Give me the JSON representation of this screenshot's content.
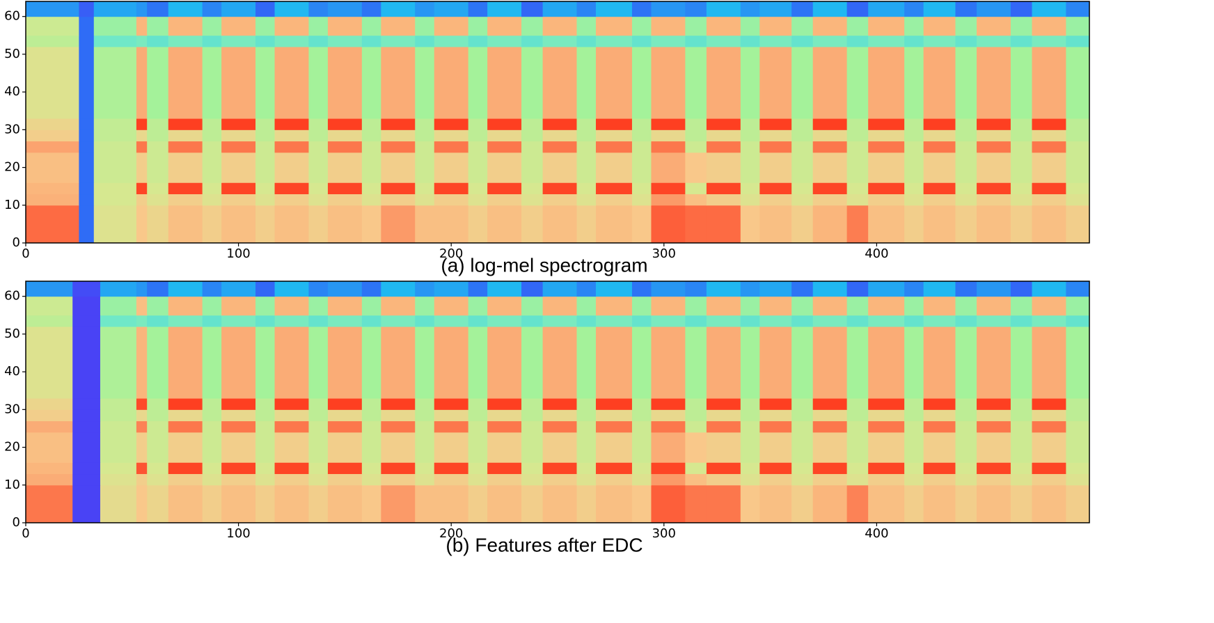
{
  "chart_data": [
    {
      "type": "heatmap",
      "caption": "(a) log-mel spectrogram",
      "xlim": [
        0,
        500
      ],
      "ylim": [
        0,
        64
      ],
      "zlim": [
        0,
        1
      ],
      "xticks": [
        0,
        100,
        200,
        300,
        400
      ],
      "yticks": [
        0,
        10,
        20,
        30,
        40,
        50,
        60
      ],
      "xbins": [
        0,
        25,
        32,
        52,
        57,
        67,
        83,
        92,
        108,
        117,
        133,
        142,
        158,
        167,
        183,
        192,
        208,
        217,
        233,
        243,
        259,
        268,
        285,
        294,
        310,
        320,
        336,
        345,
        360,
        370,
        386,
        396,
        413,
        422,
        437,
        447,
        463,
        473,
        489,
        500
      ],
      "ybins": [
        0,
        10,
        13,
        16,
        24,
        27,
        30,
        33,
        52,
        55,
        60,
        64
      ],
      "z": [
        [
          0.88,
          0.15,
          0.62,
          0.7,
          0.66,
          0.72,
          0.68,
          0.72,
          0.68,
          0.72,
          0.68,
          0.72,
          0.7,
          0.8,
          0.72,
          0.72,
          0.68,
          0.72,
          0.68,
          0.72,
          0.68,
          0.72,
          0.7,
          0.9,
          0.88,
          0.88,
          0.7,
          0.72,
          0.68,
          0.74,
          0.85,
          0.72,
          0.68,
          0.72,
          0.68,
          0.72,
          0.68,
          0.72,
          0.68
        ],
        [
          0.75,
          0.15,
          0.6,
          0.68,
          0.62,
          0.68,
          0.62,
          0.68,
          0.62,
          0.68,
          0.62,
          0.68,
          0.62,
          0.68,
          0.62,
          0.68,
          0.62,
          0.68,
          0.62,
          0.68,
          0.62,
          0.68,
          0.62,
          0.8,
          0.72,
          0.68,
          0.62,
          0.68,
          0.62,
          0.68,
          0.62,
          0.68,
          0.62,
          0.68,
          0.62,
          0.68,
          0.62,
          0.68,
          0.62
        ],
        [
          0.74,
          0.15,
          0.6,
          0.95,
          0.6,
          0.95,
          0.6,
          0.95,
          0.6,
          0.95,
          0.6,
          0.95,
          0.6,
          0.95,
          0.6,
          0.95,
          0.6,
          0.95,
          0.6,
          0.95,
          0.6,
          0.95,
          0.6,
          0.95,
          0.6,
          0.95,
          0.6,
          0.95,
          0.6,
          0.95,
          0.6,
          0.95,
          0.6,
          0.95,
          0.6,
          0.95,
          0.6,
          0.95,
          0.6
        ],
        [
          0.72,
          0.15,
          0.58,
          0.68,
          0.58,
          0.68,
          0.58,
          0.68,
          0.58,
          0.68,
          0.58,
          0.68,
          0.58,
          0.68,
          0.58,
          0.68,
          0.58,
          0.68,
          0.58,
          0.68,
          0.58,
          0.68,
          0.58,
          0.76,
          0.7,
          0.68,
          0.58,
          0.68,
          0.58,
          0.68,
          0.58,
          0.68,
          0.58,
          0.68,
          0.58,
          0.68,
          0.58,
          0.68,
          0.58
        ],
        [
          0.78,
          0.15,
          0.58,
          0.86,
          0.58,
          0.86,
          0.58,
          0.86,
          0.58,
          0.86,
          0.58,
          0.86,
          0.58,
          0.86,
          0.58,
          0.86,
          0.58,
          0.86,
          0.58,
          0.86,
          0.58,
          0.86,
          0.58,
          0.86,
          0.58,
          0.86,
          0.58,
          0.86,
          0.58,
          0.86,
          0.58,
          0.86,
          0.58,
          0.86,
          0.58,
          0.86,
          0.58,
          0.86,
          0.58
        ],
        [
          0.68,
          0.15,
          0.56,
          0.65,
          0.55,
          0.65,
          0.55,
          0.65,
          0.55,
          0.65,
          0.55,
          0.65,
          0.55,
          0.65,
          0.55,
          0.65,
          0.55,
          0.65,
          0.55,
          0.65,
          0.55,
          0.65,
          0.55,
          0.65,
          0.55,
          0.65,
          0.55,
          0.65,
          0.55,
          0.65,
          0.55,
          0.65,
          0.55,
          0.65,
          0.55,
          0.65,
          0.55,
          0.65,
          0.55
        ],
        [
          0.66,
          0.15,
          0.56,
          0.96,
          0.55,
          0.96,
          0.55,
          0.96,
          0.55,
          0.96,
          0.55,
          0.96,
          0.55,
          0.96,
          0.55,
          0.96,
          0.55,
          0.96,
          0.55,
          0.96,
          0.55,
          0.96,
          0.55,
          0.96,
          0.55,
          0.96,
          0.55,
          0.96,
          0.55,
          0.96,
          0.55,
          0.96,
          0.55,
          0.96,
          0.55,
          0.96,
          0.55,
          0.96,
          0.55
        ],
        [
          0.62,
          0.15,
          0.52,
          0.76,
          0.5,
          0.76,
          0.5,
          0.76,
          0.5,
          0.76,
          0.5,
          0.76,
          0.5,
          0.76,
          0.5,
          0.76,
          0.5,
          0.76,
          0.5,
          0.76,
          0.5,
          0.76,
          0.5,
          0.76,
          0.5,
          0.76,
          0.5,
          0.76,
          0.5,
          0.76,
          0.5,
          0.76,
          0.5,
          0.76,
          0.5,
          0.76,
          0.5,
          0.76,
          0.5
        ],
        [
          0.55,
          0.15,
          0.4,
          0.42,
          0.38,
          0.42,
          0.38,
          0.42,
          0.38,
          0.42,
          0.38,
          0.42,
          0.38,
          0.42,
          0.38,
          0.42,
          0.38,
          0.42,
          0.38,
          0.42,
          0.38,
          0.42,
          0.38,
          0.42,
          0.38,
          0.42,
          0.38,
          0.42,
          0.38,
          0.42,
          0.38,
          0.42,
          0.38,
          0.42,
          0.38,
          0.42,
          0.38,
          0.42,
          0.38
        ],
        [
          0.58,
          0.15,
          0.48,
          0.74,
          0.48,
          0.74,
          0.48,
          0.74,
          0.48,
          0.74,
          0.48,
          0.74,
          0.48,
          0.74,
          0.48,
          0.74,
          0.48,
          0.74,
          0.48,
          0.74,
          0.48,
          0.74,
          0.48,
          0.74,
          0.48,
          0.74,
          0.48,
          0.74,
          0.48,
          0.74,
          0.48,
          0.74,
          0.48,
          0.74,
          0.48,
          0.74,
          0.48,
          0.74,
          0.48
        ],
        [
          0.2,
          0.12,
          0.22,
          0.2,
          0.16,
          0.24,
          0.18,
          0.22,
          0.14,
          0.24,
          0.18,
          0.2,
          0.16,
          0.24,
          0.2,
          0.22,
          0.16,
          0.24,
          0.14,
          0.22,
          0.18,
          0.24,
          0.16,
          0.2,
          0.18,
          0.24,
          0.2,
          0.22,
          0.16,
          0.24,
          0.14,
          0.22,
          0.18,
          0.24,
          0.16,
          0.2,
          0.14,
          0.24,
          0.18
        ]
      ]
    },
    {
      "type": "heatmap",
      "caption": "(b) Features after EDC",
      "xlim": [
        0,
        500
      ],
      "ylim": [
        0,
        64
      ],
      "zlim": [
        0,
        1
      ],
      "xticks": [
        0,
        100,
        200,
        300,
        400
      ],
      "yticks": [
        0,
        10,
        20,
        30,
        40,
        50,
        60
      ],
      "xbins": [
        0,
        22,
        35,
        52,
        57,
        67,
        83,
        92,
        108,
        117,
        133,
        142,
        158,
        167,
        183,
        192,
        208,
        217,
        233,
        243,
        259,
        268,
        285,
        294,
        310,
        320,
        336,
        345,
        360,
        370,
        386,
        396,
        413,
        422,
        437,
        447,
        463,
        473,
        489,
        500
      ],
      "ybins": [
        0,
        10,
        13,
        16,
        24,
        27,
        30,
        33,
        52,
        55,
        60,
        64
      ],
      "z": [
        [
          0.86,
          0.06,
          0.64,
          0.7,
          0.66,
          0.72,
          0.68,
          0.72,
          0.68,
          0.72,
          0.68,
          0.72,
          0.7,
          0.8,
          0.72,
          0.72,
          0.68,
          0.72,
          0.68,
          0.72,
          0.68,
          0.72,
          0.7,
          0.9,
          0.86,
          0.86,
          0.7,
          0.72,
          0.68,
          0.74,
          0.84,
          0.72,
          0.68,
          0.72,
          0.68,
          0.72,
          0.68,
          0.72,
          0.68
        ],
        [
          0.76,
          0.06,
          0.62,
          0.68,
          0.62,
          0.68,
          0.62,
          0.68,
          0.62,
          0.68,
          0.62,
          0.68,
          0.62,
          0.68,
          0.62,
          0.68,
          0.62,
          0.68,
          0.62,
          0.68,
          0.62,
          0.68,
          0.62,
          0.8,
          0.72,
          0.68,
          0.62,
          0.68,
          0.62,
          0.68,
          0.62,
          0.68,
          0.62,
          0.68,
          0.62,
          0.68,
          0.62,
          0.68,
          0.62
        ],
        [
          0.74,
          0.06,
          0.6,
          0.92,
          0.6,
          0.95,
          0.6,
          0.95,
          0.6,
          0.95,
          0.6,
          0.95,
          0.6,
          0.95,
          0.6,
          0.95,
          0.6,
          0.95,
          0.6,
          0.95,
          0.6,
          0.95,
          0.6,
          0.95,
          0.6,
          0.95,
          0.6,
          0.95,
          0.6,
          0.95,
          0.6,
          0.95,
          0.6,
          0.95,
          0.6,
          0.95,
          0.6,
          0.95,
          0.6
        ],
        [
          0.72,
          0.06,
          0.58,
          0.68,
          0.58,
          0.68,
          0.58,
          0.68,
          0.58,
          0.68,
          0.58,
          0.68,
          0.58,
          0.68,
          0.58,
          0.68,
          0.58,
          0.68,
          0.58,
          0.68,
          0.58,
          0.68,
          0.58,
          0.76,
          0.7,
          0.68,
          0.58,
          0.68,
          0.58,
          0.68,
          0.58,
          0.68,
          0.58,
          0.68,
          0.58,
          0.68,
          0.58,
          0.68,
          0.58
        ],
        [
          0.76,
          0.06,
          0.58,
          0.84,
          0.58,
          0.86,
          0.58,
          0.86,
          0.58,
          0.86,
          0.58,
          0.86,
          0.58,
          0.86,
          0.58,
          0.86,
          0.58,
          0.86,
          0.58,
          0.86,
          0.58,
          0.86,
          0.58,
          0.86,
          0.58,
          0.86,
          0.58,
          0.86,
          0.58,
          0.86,
          0.58,
          0.86,
          0.58,
          0.86,
          0.58,
          0.86,
          0.58,
          0.86,
          0.58
        ],
        [
          0.68,
          0.06,
          0.56,
          0.65,
          0.55,
          0.65,
          0.55,
          0.65,
          0.55,
          0.65,
          0.55,
          0.65,
          0.55,
          0.65,
          0.55,
          0.65,
          0.55,
          0.65,
          0.55,
          0.65,
          0.55,
          0.65,
          0.55,
          0.65,
          0.55,
          0.65,
          0.55,
          0.65,
          0.55,
          0.65,
          0.55,
          0.65,
          0.55,
          0.65,
          0.55,
          0.65,
          0.55,
          0.65,
          0.55
        ],
        [
          0.66,
          0.06,
          0.56,
          0.94,
          0.55,
          0.96,
          0.55,
          0.96,
          0.55,
          0.96,
          0.55,
          0.96,
          0.55,
          0.96,
          0.55,
          0.96,
          0.55,
          0.96,
          0.55,
          0.96,
          0.55,
          0.96,
          0.55,
          0.96,
          0.55,
          0.96,
          0.55,
          0.96,
          0.55,
          0.96,
          0.55,
          0.96,
          0.55,
          0.96,
          0.55,
          0.96,
          0.55,
          0.96,
          0.55
        ],
        [
          0.62,
          0.06,
          0.52,
          0.74,
          0.5,
          0.76,
          0.5,
          0.76,
          0.5,
          0.76,
          0.5,
          0.76,
          0.5,
          0.76,
          0.5,
          0.76,
          0.5,
          0.76,
          0.5,
          0.76,
          0.5,
          0.76,
          0.5,
          0.76,
          0.5,
          0.76,
          0.5,
          0.76,
          0.5,
          0.76,
          0.5,
          0.76,
          0.5,
          0.76,
          0.5,
          0.76,
          0.5,
          0.76,
          0.5
        ],
        [
          0.55,
          0.06,
          0.4,
          0.42,
          0.38,
          0.42,
          0.38,
          0.42,
          0.38,
          0.42,
          0.38,
          0.42,
          0.38,
          0.42,
          0.38,
          0.42,
          0.38,
          0.42,
          0.38,
          0.42,
          0.38,
          0.42,
          0.38,
          0.42,
          0.38,
          0.42,
          0.38,
          0.42,
          0.38,
          0.42,
          0.38,
          0.42,
          0.38,
          0.42,
          0.38,
          0.42,
          0.38,
          0.42,
          0.38
        ],
        [
          0.58,
          0.06,
          0.48,
          0.72,
          0.48,
          0.74,
          0.48,
          0.74,
          0.48,
          0.74,
          0.48,
          0.74,
          0.48,
          0.74,
          0.48,
          0.74,
          0.48,
          0.74,
          0.48,
          0.74,
          0.48,
          0.74,
          0.48,
          0.74,
          0.48,
          0.74,
          0.48,
          0.74,
          0.48,
          0.74,
          0.48,
          0.74,
          0.48,
          0.74,
          0.48,
          0.74,
          0.48,
          0.74,
          0.48
        ],
        [
          0.2,
          0.08,
          0.22,
          0.2,
          0.16,
          0.24,
          0.18,
          0.22,
          0.14,
          0.24,
          0.18,
          0.2,
          0.16,
          0.24,
          0.2,
          0.22,
          0.16,
          0.24,
          0.14,
          0.22,
          0.18,
          0.24,
          0.16,
          0.2,
          0.18,
          0.24,
          0.2,
          0.22,
          0.16,
          0.24,
          0.14,
          0.22,
          0.18,
          0.24,
          0.16,
          0.2,
          0.14,
          0.24,
          0.18
        ]
      ]
    }
  ]
}
